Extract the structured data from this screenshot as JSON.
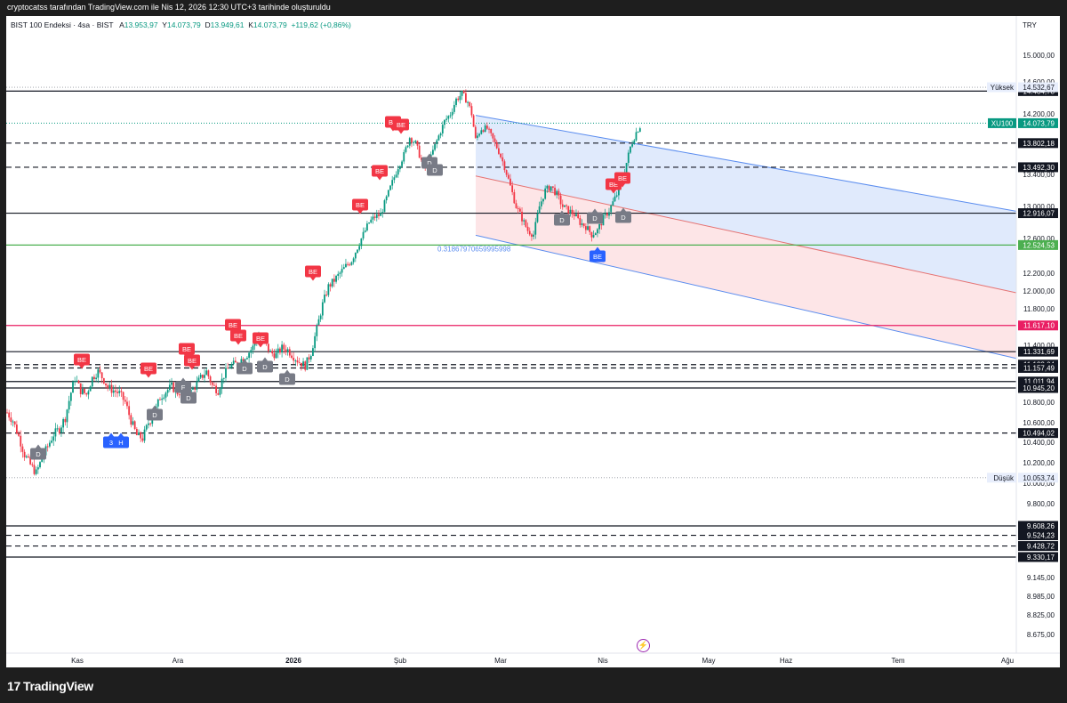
{
  "caption": "cryptocatss tarafından TradingView.com ile Nis 12, 2026 12:30 UTC+3 tarihinde oluşturuldu",
  "header": {
    "symbol": "BIST 100 Endeksi · 4sa · BIST",
    "open_label": "A",
    "open": "13.953,97",
    "high_label": "Y",
    "high": "14.073,79",
    "low_label": "D",
    "low": "13.949,61",
    "close_label": "K",
    "close": "14.073,79",
    "change": "+119,62 (+0,86%)",
    "currency": "TRY"
  },
  "footer": {
    "brand": "TradingView",
    "brand_mark": "17"
  },
  "chart_data": {
    "type": "candlestick",
    "symbol": "XU100",
    "ylim": [
      8600,
      15600
    ],
    "x_ticks": [
      "Kas",
      "Ara",
      "2026",
      "Şub",
      "Mar",
      "Nis",
      "May",
      "Haz",
      "Tem",
      "Ağu"
    ],
    "y_ticks": [
      "15.000,00",
      "14.600,00",
      "14.200,00",
      "13.400,00",
      "13.000,00",
      "12.600,00",
      "12.200,00",
      "12.000,00",
      "11.800,00",
      "11.400,00",
      "10.800,00",
      "10.600,00",
      "10.400,00",
      "10.200,00",
      "10.000,00",
      "9.800,00",
      "9.145,00",
      "8.985,00",
      "8.825,00",
      "8.675,00"
    ],
    "y_tick_values": [
      15000,
      14600,
      14200,
      13400,
      13000,
      12600,
      12200,
      12000,
      11800,
      11400,
      10800,
      10600,
      10400,
      10200,
      10000,
      9800,
      9145,
      8985,
      8825,
      8675
    ],
    "price_path": [
      [
        0,
        10700
      ],
      [
        3,
        10620
      ],
      [
        6,
        10460
      ],
      [
        9,
        10280
      ],
      [
        12,
        10180
      ],
      [
        15,
        10100
      ],
      [
        18,
        10240
      ],
      [
        21,
        10360
      ],
      [
        24,
        10480
      ],
      [
        27,
        10540
      ],
      [
        30,
        10650
      ],
      [
        33,
        10900
      ],
      [
        35,
        11050
      ],
      [
        38,
        10920
      ],
      [
        41,
        10880
      ],
      [
        44,
        11050
      ],
      [
        47,
        11120
      ],
      [
        50,
        11030
      ],
      [
        52,
        10950
      ],
      [
        55,
        10920
      ],
      [
        58,
        10890
      ],
      [
        61,
        10800
      ],
      [
        64,
        10620
      ],
      [
        67,
        10470
      ],
      [
        70,
        10440
      ],
      [
        73,
        10600
      ],
      [
        76,
        10680
      ],
      [
        79,
        10850
      ],
      [
        82,
        10910
      ],
      [
        85,
        10960
      ],
      [
        88,
        10900
      ],
      [
        91,
        10930
      ],
      [
        94,
        10880
      ],
      [
        97,
        10960
      ],
      [
        100,
        11050
      ],
      [
        103,
        11120
      ],
      [
        106,
        10970
      ],
      [
        109,
        10920
      ],
      [
        112,
        11080
      ],
      [
        115,
        11180
      ],
      [
        118,
        11200
      ],
      [
        121,
        11250
      ],
      [
        124,
        11300
      ],
      [
        127,
        11380
      ],
      [
        130,
        11500
      ],
      [
        133,
        11430
      ],
      [
        136,
        11320
      ],
      [
        139,
        11300
      ],
      [
        142,
        11370
      ],
      [
        145,
        11350
      ],
      [
        148,
        11280
      ],
      [
        151,
        11220
      ],
      [
        154,
        11180
      ],
      [
        157,
        11320
      ],
      [
        160,
        11580
      ],
      [
        163,
        11850
      ],
      [
        166,
        12050
      ],
      [
        169,
        12120
      ],
      [
        172,
        12200
      ],
      [
        175,
        12280
      ],
      [
        178,
        12350
      ],
      [
        181,
        12500
      ],
      [
        184,
        12650
      ],
      [
        187,
        12800
      ],
      [
        190,
        12870
      ],
      [
        193,
        12900
      ],
      [
        196,
        13100
      ],
      [
        199,
        13300
      ],
      [
        202,
        13500
      ],
      [
        205,
        13650
      ],
      [
        208,
        13880
      ],
      [
        211,
        13800
      ],
      [
        214,
        13580
      ],
      [
        217,
        13450
      ],
      [
        220,
        13700
      ],
      [
        223,
        13900
      ],
      [
        226,
        14100
      ],
      [
        229,
        14200
      ],
      [
        232,
        14380
      ],
      [
        235,
        14450
      ],
      [
        238,
        14350
      ],
      [
        240,
        14200
      ],
      [
        242,
        13850
      ],
      [
        245,
        14000
      ],
      [
        248,
        14000
      ],
      [
        251,
        13850
      ],
      [
        254,
        13700
      ],
      [
        257,
        13500
      ],
      [
        260,
        13250
      ],
      [
        263,
        13000
      ],
      [
        266,
        12850
      ],
      [
        269,
        12700
      ],
      [
        272,
        12650
      ],
      [
        275,
        13000
      ],
      [
        278,
        13200
      ],
      [
        281,
        13250
      ],
      [
        284,
        13150
      ],
      [
        287,
        13000
      ],
      [
        290,
        12950
      ],
      [
        293,
        12900
      ],
      [
        296,
        12800
      ],
      [
        299,
        12750
      ],
      [
        302,
        12650
      ],
      [
        305,
        12700
      ],
      [
        308,
        12850
      ],
      [
        311,
        12950
      ],
      [
        314,
        13100
      ],
      [
        317,
        13250
      ],
      [
        319,
        13450
      ],
      [
        322,
        13750
      ],
      [
        325,
        13950
      ],
      [
        328,
        14073.79
      ]
    ],
    "horizontal_levels": [
      {
        "label": "14.484,78",
        "value": 14484.78,
        "style": "solid",
        "color": "#131722",
        "tag_bg": "#131722",
        "tag_fg": "#ffffff"
      },
      {
        "label": "13.802,18",
        "value": 13802.18,
        "style": "dashed",
        "color": "#131722",
        "tag_bg": "#131722",
        "tag_fg": "#ffffff"
      },
      {
        "label": "13.492,30",
        "value": 13492.3,
        "style": "dashed",
        "color": "#131722",
        "tag_bg": "#131722",
        "tag_fg": "#ffffff"
      },
      {
        "label": "12.916,07",
        "value": 12916.07,
        "style": "solid",
        "color": "#131722",
        "tag_bg": "#131722",
        "tag_fg": "#ffffff"
      },
      {
        "label": "12.524,53",
        "value": 12524.53,
        "style": "solid",
        "color": "#4caf50",
        "tag_bg": "#4caf50",
        "tag_fg": "#ffffff"
      },
      {
        "label": "11.617,10",
        "value": 11617.1,
        "style": "solid",
        "color": "#e91e63",
        "tag_bg": "#e91e63",
        "tag_fg": "#ffffff"
      },
      {
        "label": "11.331,69",
        "value": 11331.69,
        "style": "solid",
        "color": "#131722",
        "tag_bg": "#131722",
        "tag_fg": "#ffffff"
      },
      {
        "label": "11.193,04",
        "value": 11193.04,
        "style": "dashed",
        "color": "#131722",
        "tag_bg": "#131722",
        "tag_fg": "#ffffff"
      },
      {
        "label": "11.157,49",
        "value": 11157.49,
        "style": "dashed",
        "color": "#131722",
        "tag_bg": "#131722",
        "tag_fg": "#ffffff"
      },
      {
        "label": "11.011,94",
        "value": 11011.94,
        "style": "solid",
        "color": "#131722",
        "tag_bg": "#131722",
        "tag_fg": "#ffffff"
      },
      {
        "label": "10.945,20",
        "value": 10945.2,
        "style": "solid",
        "color": "#131722",
        "tag_bg": "#131722",
        "tag_fg": "#ffffff"
      },
      {
        "label": "10.494,02",
        "value": 10494.02,
        "style": "dashed",
        "color": "#131722",
        "tag_bg": "#131722",
        "tag_fg": "#ffffff"
      },
      {
        "label": "9.608,26",
        "value": 9608.26,
        "style": "solid",
        "color": "#131722",
        "tag_bg": "#131722",
        "tag_fg": "#ffffff"
      },
      {
        "label": "9.524,23",
        "value": 9524.23,
        "style": "dashed",
        "color": "#131722",
        "tag_bg": "#131722",
        "tag_fg": "#ffffff"
      },
      {
        "label": "9.428,72",
        "value": 9428.72,
        "style": "dashed",
        "color": "#131722",
        "tag_bg": "#131722",
        "tag_fg": "#ffffff"
      },
      {
        "label": "9.330,17",
        "value": 9330.17,
        "style": "solid",
        "color": "#131722",
        "tag_bg": "#131722",
        "tag_fg": "#ffffff"
      }
    ],
    "range_labels": [
      {
        "name": "Yüksek",
        "label": "14.532,67",
        "value": 14532.67
      },
      {
        "name": "Düşük",
        "label": "10.053,74",
        "value": 10053.74
      }
    ],
    "last_price": {
      "name": "XU100",
      "label": "14.073,79",
      "value": 14073.79,
      "color": "#089981"
    },
    "channel": {
      "upper_start": 14180,
      "upper_end": 12940,
      "mid_start": 13380,
      "mid_end": 11980,
      "lower_start": 12640,
      "lower_end": 11260,
      "fill_upper": "#dbe6fb",
      "fill_lower": "#fde0e3",
      "line_color": "#5b8def",
      "mid_color": "#e57373",
      "text": "0.31867970659995998"
    },
    "signals": [
      {
        "type": "BE",
        "kind": "sell"
      },
      {
        "type": "BE",
        "kind": "sell"
      },
      {
        "type": "BE",
        "kind": "sell"
      },
      {
        "type": "BE",
        "kind": "sell"
      },
      {
        "type": "BE",
        "kind": "sell"
      },
      {
        "type": "BE",
        "kind": "sell"
      },
      {
        "type": "BE",
        "kind": "sell"
      },
      {
        "type": "BE",
        "kind": "sell"
      },
      {
        "type": "BE",
        "kind": "sell"
      },
      {
        "type": "BE",
        "kind": "sell"
      },
      {
        "type": "BE",
        "kind": "sell"
      },
      {
        "type": "BE",
        "kind": "sell"
      },
      {
        "type": "BE",
        "kind": "sell"
      },
      {
        "type": "BE",
        "kind": "sell"
      },
      {
        "type": "D",
        "kind": "neutral"
      },
      {
        "type": "D",
        "kind": "neutral"
      },
      {
        "type": "D",
        "kind": "neutral"
      },
      {
        "type": "D",
        "kind": "neutral"
      },
      {
        "type": "D",
        "kind": "neutral"
      },
      {
        "type": "D",
        "kind": "neutral"
      },
      {
        "type": "D",
        "kind": "neutral"
      },
      {
        "type": "D",
        "kind": "neutral"
      },
      {
        "type": "D",
        "kind": "neutral"
      },
      {
        "type": "D",
        "kind": "neutral"
      },
      {
        "type": "D",
        "kind": "neutral"
      },
      {
        "type": "F",
        "kind": "neutral"
      },
      {
        "type": "3",
        "kind": "buy"
      },
      {
        "type": "H",
        "kind": "buy"
      },
      {
        "type": "BE",
        "kind": "buy"
      }
    ],
    "colors": {
      "up": "#089981",
      "down": "#f23645",
      "grid": "#f0f3fa",
      "axis_text": "#131722"
    },
    "grid": false
  }
}
